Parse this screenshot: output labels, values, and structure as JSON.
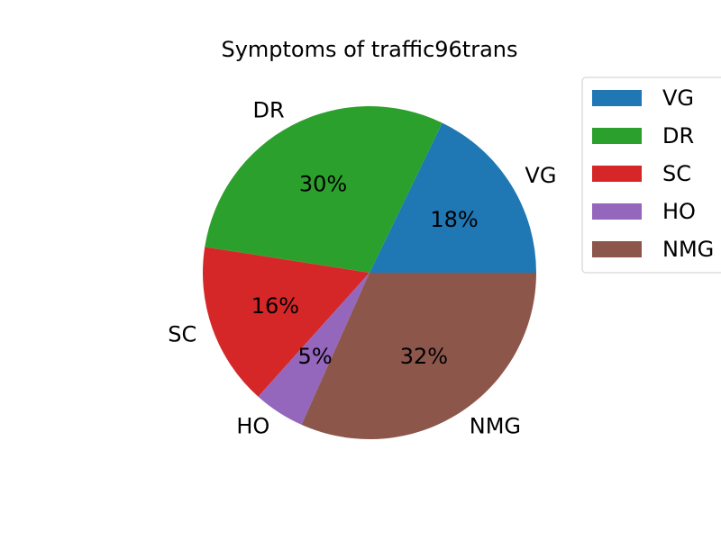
{
  "chart_data": {
    "type": "pie",
    "title": "Symptoms of traffic96trans",
    "categories": [
      "VG",
      "DR",
      "SC",
      "HO",
      "NMG"
    ],
    "values": [
      18,
      30,
      16,
      5,
      32
    ],
    "percent_labels": [
      "18%",
      "30%",
      "16%",
      "5%",
      "32%"
    ],
    "colors": [
      "#1f77b4",
      "#2ca02c",
      "#d62728",
      "#9467bd",
      "#8c564b"
    ],
    "start_angle_deg": 0,
    "direction": "counterclockwise",
    "legend": {
      "placement": "top-right",
      "entries": [
        "VG",
        "DR",
        "SC",
        "HO",
        "NMG"
      ]
    }
  }
}
